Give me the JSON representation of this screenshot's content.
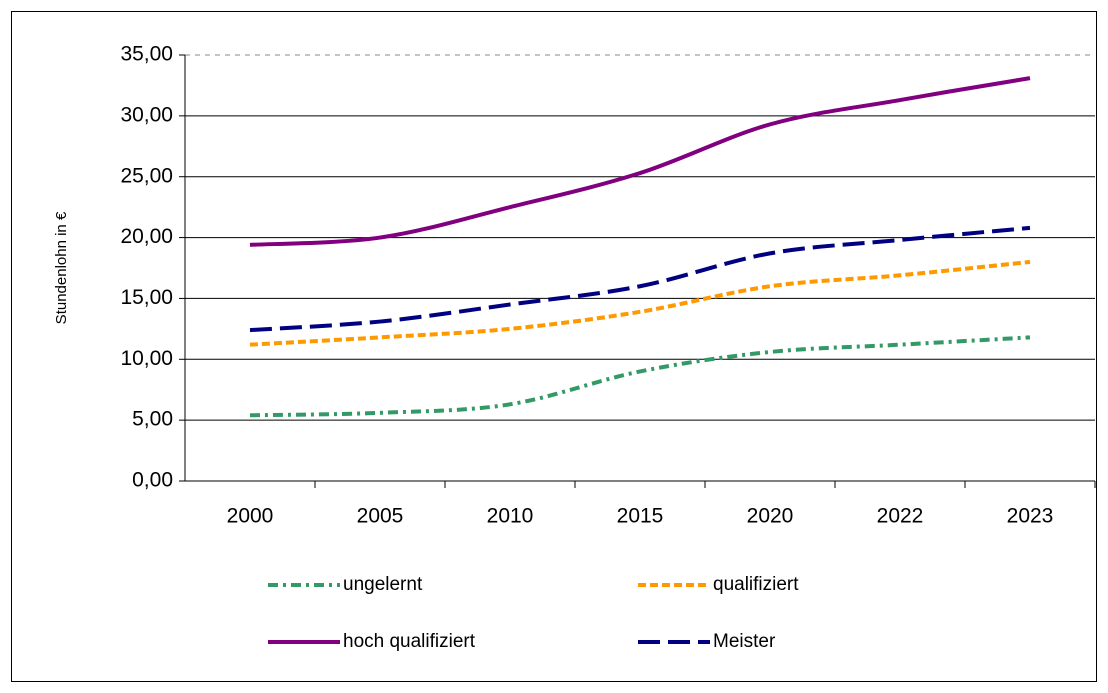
{
  "chart_data": {
    "type": "line",
    "ylabel": "Stundenlohn in €",
    "categories": [
      "2000",
      "2005",
      "2010",
      "2015",
      "2020",
      "2022",
      "2023"
    ],
    "series": [
      {
        "name": "ungelernt",
        "color": "#339966",
        "dash": "dash-dot",
        "values": [
          5.4,
          5.6,
          6.3,
          9.0,
          10.6,
          11.2,
          11.8
        ]
      },
      {
        "name": "qualifiziert",
        "color": "#ff9900",
        "dash": "short-dash",
        "values": [
          11.2,
          11.8,
          12.5,
          13.9,
          16.0,
          16.9,
          18.0
        ]
      },
      {
        "name": "hoch qualifiziert",
        "color": "#800080",
        "dash": "solid",
        "values": [
          19.4,
          20.0,
          22.5,
          25.3,
          29.3,
          31.3,
          33.1
        ]
      },
      {
        "name": "Meister",
        "color": "#000080",
        "dash": "long-dash",
        "values": [
          12.4,
          13.1,
          14.5,
          16.0,
          18.7,
          19.8,
          20.8
        ]
      }
    ],
    "ylim": [
      0,
      35
    ],
    "yticks": [
      {
        "value": 0,
        "label": "0,00"
      },
      {
        "value": 5,
        "label": "5,00"
      },
      {
        "value": 10,
        "label": "10,00"
      },
      {
        "value": 15,
        "label": "15,00"
      },
      {
        "value": 20,
        "label": "20,00"
      },
      {
        "value": 25,
        "label": "25,00"
      },
      {
        "value": 30,
        "label": "30,00"
      },
      {
        "value": 35,
        "label": "35,00"
      }
    ],
    "grid": true,
    "legend": "bottom"
  }
}
